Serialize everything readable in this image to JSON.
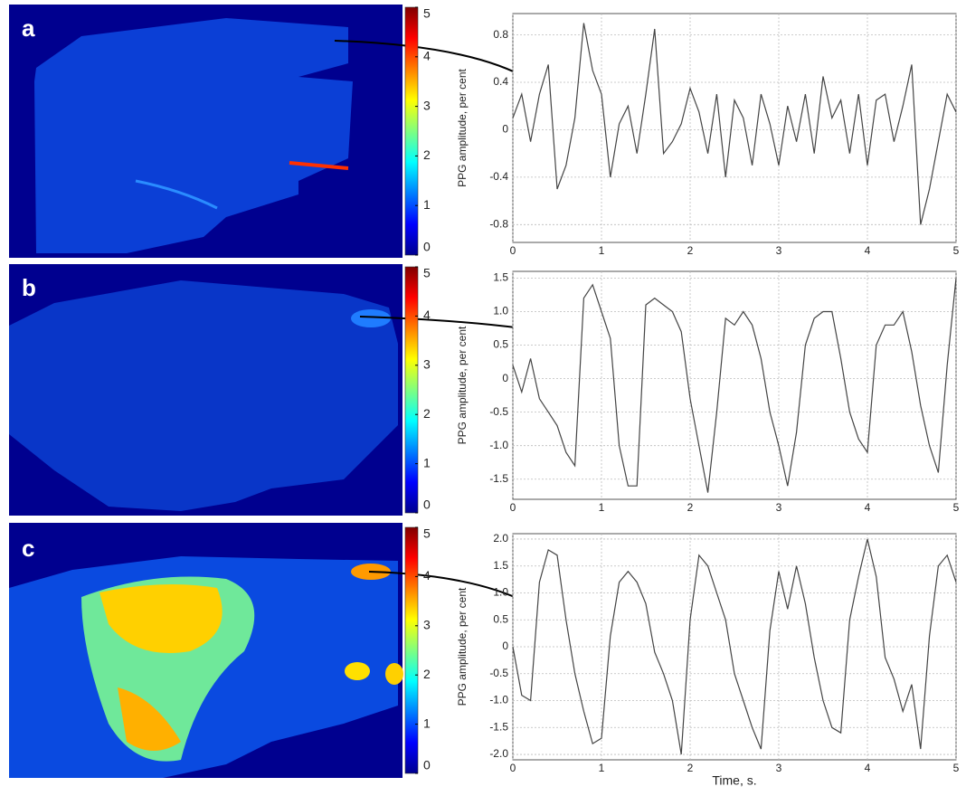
{
  "chart_data": [
    {
      "type": "line",
      "panel_label": "a",
      "ylabel": "PPG amplitude, per cent",
      "colorbar": {
        "ylim": [
          0,
          5
        ],
        "yticks": [
          0,
          1,
          2,
          3,
          4,
          5
        ]
      },
      "x": [
        0,
        0.1,
        0.2,
        0.3,
        0.4,
        0.5,
        0.6,
        0.7,
        0.8,
        0.9,
        1,
        1.1,
        1.2,
        1.3,
        1.4,
        1.5,
        1.6,
        1.7,
        1.8,
        1.9,
        2,
        2.1,
        2.2,
        2.3,
        2.4,
        2.5,
        2.6,
        2.7,
        2.8,
        2.9,
        3,
        3.1,
        3.2,
        3.3,
        3.4,
        3.5,
        3.6,
        3.7,
        3.8,
        3.9,
        4,
        4.1,
        4.2,
        4.3,
        4.4,
        4.5,
        4.6,
        4.7,
        4.8,
        4.9,
        5
      ],
      "values": [
        0.1,
        0.3,
        -0.1,
        0.3,
        0.55,
        -0.5,
        -0.3,
        0.1,
        0.9,
        0.5,
        0.3,
        -0.4,
        0.05,
        0.2,
        -0.2,
        0.3,
        0.85,
        -0.2,
        -0.1,
        0.05,
        0.35,
        0.15,
        -0.2,
        0.3,
        -0.4,
        0.25,
        0.1,
        -0.3,
        0.3,
        0.05,
        -0.3,
        0.2,
        -0.1,
        0.3,
        -0.2,
        0.45,
        0.1,
        0.25,
        -0.2,
        0.3,
        -0.3,
        0.25,
        0.3,
        -0.1,
        0.2,
        0.55,
        -0.8,
        -0.5,
        -0.1,
        0.3,
        0.15
      ],
      "color": "#444444",
      "xlim": [
        0,
        5
      ],
      "xticks": [
        0,
        1,
        2,
        3,
        4,
        5
      ],
      "ylim": [
        -0.95,
        0.98
      ],
      "yticks": [
        -0.8,
        -0.4,
        0,
        0.4,
        0.8
      ],
      "grid": true
    },
    {
      "type": "line",
      "panel_label": "b",
      "ylabel": "PPG amplitude, per cent",
      "colorbar": {
        "ylim": [
          0,
          5
        ],
        "yticks": [
          0,
          1,
          2,
          3,
          4,
          5
        ]
      },
      "x": [
        0,
        0.1,
        0.2,
        0.3,
        0.4,
        0.5,
        0.6,
        0.7,
        0.8,
        0.9,
        1,
        1.1,
        1.2,
        1.3,
        1.4,
        1.5,
        1.6,
        1.7,
        1.8,
        1.9,
        2,
        2.1,
        2.2,
        2.3,
        2.4,
        2.5,
        2.6,
        2.7,
        2.8,
        2.9,
        3,
        3.1,
        3.2,
        3.3,
        3.4,
        3.5,
        3.6,
        3.7,
        3.8,
        3.9,
        4,
        4.1,
        4.2,
        4.3,
        4.4,
        4.5,
        4.6,
        4.7,
        4.8,
        4.9,
        5
      ],
      "values": [
        0.2,
        -0.2,
        0.3,
        -0.3,
        -0.5,
        -0.7,
        -1.1,
        -1.3,
        1.2,
        1.4,
        1.0,
        0.6,
        -1.0,
        -1.6,
        -1.6,
        1.1,
        1.2,
        1.1,
        1.0,
        0.7,
        -0.3,
        -1.0,
        -1.7,
        -0.5,
        0.9,
        0.8,
        1.0,
        0.8,
        0.3,
        -0.5,
        -1.0,
        -1.6,
        -0.8,
        0.5,
        0.9,
        1.0,
        1.0,
        0.3,
        -0.5,
        -0.9,
        -1.1,
        0.5,
        0.8,
        0.8,
        1.0,
        0.4,
        -0.4,
        -1.0,
        -1.4,
        0.2,
        1.5
      ],
      "color": "#444444",
      "xlim": [
        0,
        5
      ],
      "xticks": [
        0,
        1,
        2,
        3,
        4,
        5
      ],
      "ylim": [
        -1.8,
        1.6
      ],
      "yticks": [
        -1.5,
        {
          "value": -1,
          "label": "-1.0"
        },
        -0.5,
        0,
        0.5,
        {
          "value": 1,
          "label": "1.0"
        },
        1.5
      ],
      "grid": true
    },
    {
      "type": "line",
      "panel_label": "c",
      "ylabel": "PPG amplitude, per cent",
      "xlabel": "Time, s.",
      "colorbar": {
        "ylim": [
          0,
          5
        ],
        "yticks": [
          0,
          1,
          2,
          3,
          4,
          5
        ]
      },
      "x": [
        0,
        0.1,
        0.2,
        0.3,
        0.4,
        0.5,
        0.6,
        0.7,
        0.8,
        0.9,
        1,
        1.1,
        1.2,
        1.3,
        1.4,
        1.5,
        1.6,
        1.7,
        1.8,
        1.9,
        2,
        2.1,
        2.2,
        2.3,
        2.4,
        2.5,
        2.6,
        2.7,
        2.8,
        2.9,
        3,
        3.1,
        3.2,
        3.3,
        3.4,
        3.5,
        3.6,
        3.7,
        3.8,
        3.9,
        4,
        4.1,
        4.2,
        4.3,
        4.4,
        4.5,
        4.6,
        4.7,
        4.8,
        4.9,
        5
      ],
      "values": [
        0.0,
        -0.9,
        -1.0,
        1.2,
        1.8,
        1.7,
        0.5,
        -0.5,
        -1.2,
        -1.8,
        -1.7,
        0.2,
        1.2,
        1.4,
        1.2,
        0.8,
        -0.1,
        -0.5,
        -1.0,
        -2.0,
        0.5,
        1.7,
        1.5,
        1.0,
        0.5,
        -0.5,
        -1.0,
        -1.5,
        -1.9,
        0.3,
        1.4,
        0.7,
        1.5,
        0.8,
        -0.2,
        -1.0,
        -1.5,
        -1.6,
        0.5,
        1.3,
        2.0,
        1.3,
        -0.2,
        -0.6,
        -1.2,
        -0.7,
        -1.9,
        0.2,
        1.5,
        1.7,
        1.2
      ],
      "color": "#444444",
      "xlim": [
        0,
        5
      ],
      "xticks": [
        0,
        1,
        2,
        3,
        4,
        5
      ],
      "ylim": [
        -2.1,
        2.1
      ],
      "yticks": [
        {
          "value": -2,
          "label": "-2.0"
        },
        -1.5,
        {
          "value": -1,
          "label": "-1.0"
        },
        -0.5,
        0,
        0.5,
        {
          "value": 1,
          "label": "1.0"
        },
        1.5,
        {
          "value": 2,
          "label": "2.0"
        }
      ],
      "grid": true
    }
  ]
}
